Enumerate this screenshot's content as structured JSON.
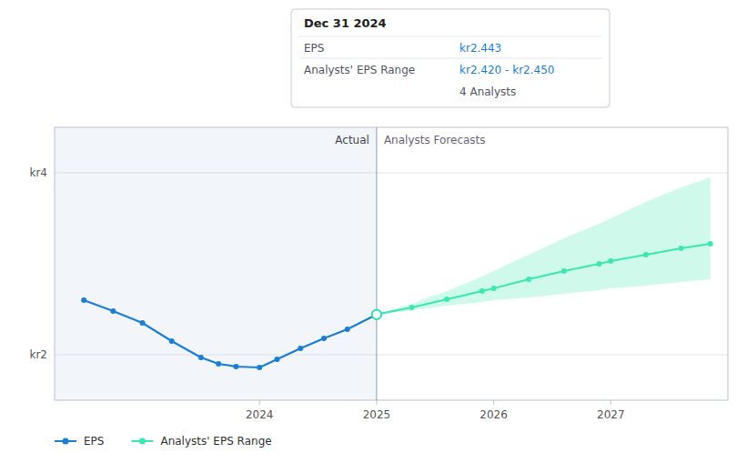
{
  "chart_data": {
    "type": "line",
    "x": [],
    "series": [
      {
        "name": "EPS",
        "color": "#1a7fd4",
        "marker": "circle",
        "x": [
          2022.5,
          2022.75,
          2023.0,
          2023.25,
          2023.5,
          2023.65,
          2023.8,
          2024.0,
          2024.15,
          2024.35,
          2024.55,
          2024.75,
          2025.0
        ],
        "values": [
          2.6,
          2.48,
          2.35,
          2.15,
          1.97,
          1.9,
          1.87,
          1.86,
          1.95,
          2.07,
          2.18,
          2.28,
          2.443
        ]
      },
      {
        "name": "Analysts' EPS Range",
        "color": "#3de8b0",
        "marker": "circle",
        "x": [
          2025.0,
          2025.3,
          2025.6,
          2025.9,
          2026.0,
          2026.3,
          2026.6,
          2026.9,
          2027.0,
          2027.3,
          2027.6,
          2027.85
        ],
        "values": [
          2.443,
          2.52,
          2.61,
          2.7,
          2.73,
          2.83,
          2.92,
          3.0,
          3.03,
          3.1,
          3.17,
          3.22
        ],
        "upper": [
          2.443,
          2.56,
          2.7,
          2.86,
          2.92,
          3.1,
          3.28,
          3.44,
          3.5,
          3.68,
          3.84,
          3.95
        ],
        "lower": [
          2.443,
          2.49,
          2.54,
          2.58,
          2.6,
          2.63,
          2.67,
          2.71,
          2.73,
          2.76,
          2.8,
          2.83
        ]
      }
    ],
    "divider": 2025.0,
    "annotations": [
      "Actual",
      "Analysts Forecasts"
    ],
    "tooltip": {
      "title": "Dec 31 2024",
      "rows": [
        {
          "label": "EPS",
          "value": "kr2.443"
        },
        {
          "label": "Analysts' EPS Range",
          "value": "kr2.420 - kr2.450"
        },
        {
          "value": "4 Analysts"
        }
      ]
    },
    "xlim": [
      2022.25,
      2028.0
    ],
    "xticks": [
      2024,
      2025,
      2026,
      2027
    ],
    "ylim": [
      1.5,
      4.5
    ],
    "yticks": [
      {
        "value": 2.0,
        "label": "kr2"
      },
      {
        "value": 4.0,
        "label": "kr4"
      }
    ],
    "grid": true,
    "legend": "bottom"
  }
}
